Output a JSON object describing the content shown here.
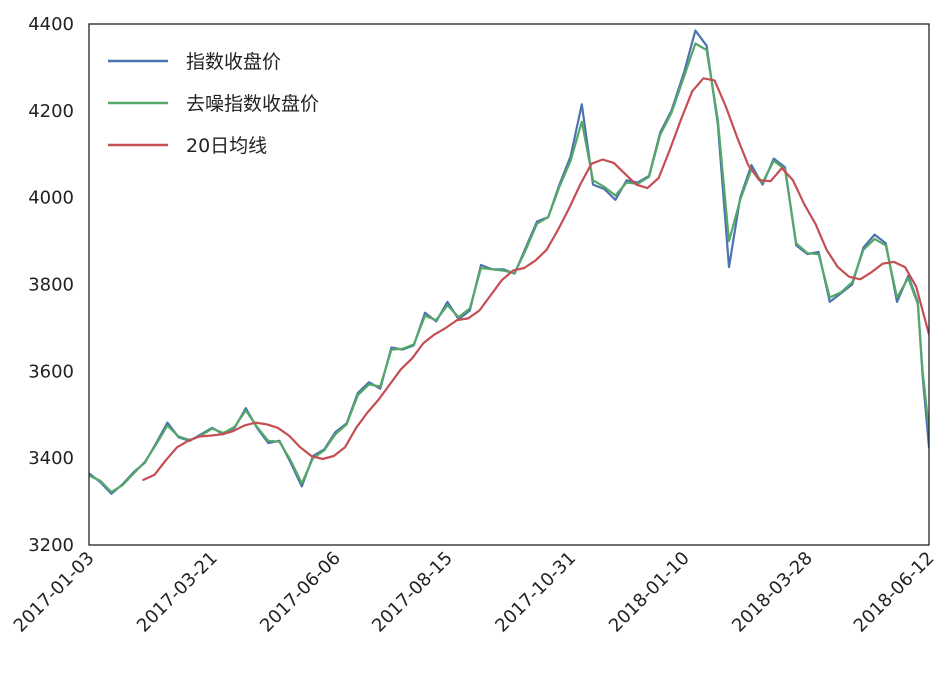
{
  "chart_data": {
    "type": "line",
    "title": "",
    "xlabel": "",
    "ylabel": "",
    "x_ticks": [
      "2017-01-03",
      "2017-03-21",
      "2017-06-06",
      "2017-08-15",
      "2017-10-31",
      "2018-01-10",
      "2018-03-28",
      "2018-06-12"
    ],
    "x_range": [
      "2017-01-03",
      "2018-06-12"
    ],
    "ylim": [
      3200,
      4400
    ],
    "y_ticks": [
      3200,
      3400,
      3600,
      3800,
      4000,
      4200,
      4400
    ],
    "grid": false,
    "legend_position": "upper-left",
    "series": [
      {
        "name": "指数收盘价",
        "color": "#4c72b0",
        "points": [
          [
            "2017-01-03",
            3365
          ],
          [
            "2017-01-10",
            3345
          ],
          [
            "2017-01-17",
            3318
          ],
          [
            "2017-01-24",
            3340
          ],
          [
            "2017-01-31",
            3368
          ],
          [
            "2017-02-07",
            3390
          ],
          [
            "2017-02-14",
            3435
          ],
          [
            "2017-02-21",
            3482
          ],
          [
            "2017-02-28",
            3448
          ],
          [
            "2017-03-07",
            3440
          ],
          [
            "2017-03-14",
            3455
          ],
          [
            "2017-03-21",
            3470
          ],
          [
            "2017-03-28",
            3455
          ],
          [
            "2017-04-04",
            3470
          ],
          [
            "2017-04-11",
            3515
          ],
          [
            "2017-04-18",
            3470
          ],
          [
            "2017-04-25",
            3435
          ],
          [
            "2017-05-02",
            3440
          ],
          [
            "2017-05-09",
            3390
          ],
          [
            "2017-05-16",
            3335
          ],
          [
            "2017-05-23",
            3405
          ],
          [
            "2017-05-30",
            3420
          ],
          [
            "2017-06-06",
            3460
          ],
          [
            "2017-06-13",
            3480
          ],
          [
            "2017-06-20",
            3550
          ],
          [
            "2017-06-27",
            3575
          ],
          [
            "2017-07-04",
            3560
          ],
          [
            "2017-07-11",
            3655
          ],
          [
            "2017-07-18",
            3650
          ],
          [
            "2017-07-25",
            3660
          ],
          [
            "2017-08-01",
            3735
          ],
          [
            "2017-08-08",
            3715
          ],
          [
            "2017-08-15",
            3760
          ],
          [
            "2017-08-22",
            3720
          ],
          [
            "2017-08-29",
            3740
          ],
          [
            "2017-09-05",
            3845
          ],
          [
            "2017-09-12",
            3835
          ],
          [
            "2017-09-19",
            3835
          ],
          [
            "2017-09-26",
            3825
          ],
          [
            "2017-10-03",
            3885
          ],
          [
            "2017-10-10",
            3945
          ],
          [
            "2017-10-17",
            3955
          ],
          [
            "2017-10-24",
            4030
          ],
          [
            "2017-10-31",
            4095
          ],
          [
            "2017-11-07",
            4215
          ],
          [
            "2017-11-14",
            4030
          ],
          [
            "2017-11-21",
            4020
          ],
          [
            "2017-11-28",
            3995
          ],
          [
            "2017-12-05",
            4040
          ],
          [
            "2017-12-12",
            4035
          ],
          [
            "2017-12-19",
            4050
          ],
          [
            "2017-12-26",
            4150
          ],
          [
            "2018-01-02",
            4200
          ],
          [
            "2018-01-10",
            4290
          ],
          [
            "2018-01-17",
            4385
          ],
          [
            "2018-01-24",
            4350
          ],
          [
            "2018-01-31",
            4170
          ],
          [
            "2018-02-07",
            3840
          ],
          [
            "2018-02-14",
            4000
          ],
          [
            "2018-02-21",
            4075
          ],
          [
            "2018-02-28",
            4030
          ],
          [
            "2018-03-07",
            4090
          ],
          [
            "2018-03-14",
            4070
          ],
          [
            "2018-03-21",
            3890
          ],
          [
            "2018-03-28",
            3870
          ],
          [
            "2018-04-04",
            3875
          ],
          [
            "2018-04-11",
            3760
          ],
          [
            "2018-04-18",
            3780
          ],
          [
            "2018-04-25",
            3800
          ],
          [
            "2018-05-02",
            3885
          ],
          [
            "2018-05-09",
            3915
          ],
          [
            "2018-05-16",
            3895
          ],
          [
            "2018-05-23",
            3760
          ],
          [
            "2018-05-30",
            3820
          ],
          [
            "2018-06-05",
            3760
          ],
          [
            "2018-06-08",
            3590
          ],
          [
            "2018-06-12",
            3425
          ]
        ]
      },
      {
        "name": "去噪指数收盘价",
        "color": "#55a868",
        "points": [
          [
            "2017-01-03",
            3360
          ],
          [
            "2017-01-10",
            3348
          ],
          [
            "2017-01-17",
            3322
          ],
          [
            "2017-01-24",
            3338
          ],
          [
            "2017-01-31",
            3365
          ],
          [
            "2017-02-07",
            3392
          ],
          [
            "2017-02-14",
            3432
          ],
          [
            "2017-02-21",
            3475
          ],
          [
            "2017-02-28",
            3450
          ],
          [
            "2017-03-07",
            3442
          ],
          [
            "2017-03-14",
            3452
          ],
          [
            "2017-03-21",
            3468
          ],
          [
            "2017-03-28",
            3458
          ],
          [
            "2017-04-04",
            3472
          ],
          [
            "2017-04-11",
            3510
          ],
          [
            "2017-04-18",
            3472
          ],
          [
            "2017-04-25",
            3440
          ],
          [
            "2017-05-02",
            3438
          ],
          [
            "2017-05-09",
            3395
          ],
          [
            "2017-05-16",
            3342
          ],
          [
            "2017-05-23",
            3400
          ],
          [
            "2017-05-30",
            3418
          ],
          [
            "2017-06-06",
            3455
          ],
          [
            "2017-06-13",
            3478
          ],
          [
            "2017-06-20",
            3545
          ],
          [
            "2017-06-27",
            3570
          ],
          [
            "2017-07-04",
            3565
          ],
          [
            "2017-07-11",
            3650
          ],
          [
            "2017-07-18",
            3652
          ],
          [
            "2017-07-25",
            3662
          ],
          [
            "2017-08-01",
            3728
          ],
          [
            "2017-08-08",
            3718
          ],
          [
            "2017-08-15",
            3752
          ],
          [
            "2017-08-22",
            3725
          ],
          [
            "2017-08-29",
            3745
          ],
          [
            "2017-09-05",
            3838
          ],
          [
            "2017-09-12",
            3835
          ],
          [
            "2017-09-19",
            3832
          ],
          [
            "2017-09-26",
            3826
          ],
          [
            "2017-10-03",
            3880
          ],
          [
            "2017-10-10",
            3940
          ],
          [
            "2017-10-17",
            3955
          ],
          [
            "2017-10-24",
            4025
          ],
          [
            "2017-10-31",
            4085
          ],
          [
            "2017-11-07",
            4175
          ],
          [
            "2017-11-14",
            4040
          ],
          [
            "2017-11-21",
            4025
          ],
          [
            "2017-11-28",
            4005
          ],
          [
            "2017-12-05",
            4035
          ],
          [
            "2017-12-12",
            4032
          ],
          [
            "2017-12-19",
            4048
          ],
          [
            "2017-12-26",
            4145
          ],
          [
            "2018-01-02",
            4195
          ],
          [
            "2018-01-10",
            4280
          ],
          [
            "2018-01-17",
            4355
          ],
          [
            "2018-01-24",
            4340
          ],
          [
            "2018-01-31",
            4180
          ],
          [
            "2018-02-07",
            3900
          ],
          [
            "2018-02-14",
            3995
          ],
          [
            "2018-02-21",
            4065
          ],
          [
            "2018-02-28",
            4035
          ],
          [
            "2018-03-07",
            4085
          ],
          [
            "2018-03-14",
            4065
          ],
          [
            "2018-03-21",
            3895
          ],
          [
            "2018-03-28",
            3872
          ],
          [
            "2018-04-04",
            3870
          ],
          [
            "2018-04-11",
            3770
          ],
          [
            "2018-04-18",
            3782
          ],
          [
            "2018-04-25",
            3805
          ],
          [
            "2018-05-02",
            3880
          ],
          [
            "2018-05-09",
            3905
          ],
          [
            "2018-05-16",
            3890
          ],
          [
            "2018-05-23",
            3770
          ],
          [
            "2018-05-30",
            3815
          ],
          [
            "2018-06-05",
            3755
          ],
          [
            "2018-06-08",
            3600
          ],
          [
            "2018-06-12",
            3465
          ]
        ]
      },
      {
        "name": "20日均线",
        "color": "#c44e52",
        "points": [
          [
            "2017-02-06",
            3350
          ],
          [
            "2017-02-13",
            3362
          ],
          [
            "2017-02-20",
            3395
          ],
          [
            "2017-02-27",
            3425
          ],
          [
            "2017-03-06",
            3440
          ],
          [
            "2017-03-13",
            3450
          ],
          [
            "2017-03-20",
            3452
          ],
          [
            "2017-03-27",
            3455
          ],
          [
            "2017-04-03",
            3462
          ],
          [
            "2017-04-10",
            3475
          ],
          [
            "2017-04-17",
            3482
          ],
          [
            "2017-04-24",
            3478
          ],
          [
            "2017-05-01",
            3470
          ],
          [
            "2017-05-08",
            3452
          ],
          [
            "2017-05-15",
            3425
          ],
          [
            "2017-05-22",
            3405
          ],
          [
            "2017-05-29",
            3398
          ],
          [
            "2017-06-05",
            3405
          ],
          [
            "2017-06-12",
            3425
          ],
          [
            "2017-06-19",
            3470
          ],
          [
            "2017-06-26",
            3505
          ],
          [
            "2017-07-03",
            3535
          ],
          [
            "2017-07-10",
            3570
          ],
          [
            "2017-07-17",
            3605
          ],
          [
            "2017-07-24",
            3630
          ],
          [
            "2017-07-31",
            3665
          ],
          [
            "2017-08-07",
            3685
          ],
          [
            "2017-08-14",
            3700
          ],
          [
            "2017-08-21",
            3718
          ],
          [
            "2017-08-28",
            3722
          ],
          [
            "2017-09-04",
            3740
          ],
          [
            "2017-09-11",
            3775
          ],
          [
            "2017-09-18",
            3810
          ],
          [
            "2017-09-25",
            3832
          ],
          [
            "2017-10-02",
            3838
          ],
          [
            "2017-10-09",
            3855
          ],
          [
            "2017-10-16",
            3880
          ],
          [
            "2017-10-23",
            3925
          ],
          [
            "2017-10-30",
            3975
          ],
          [
            "2017-11-06",
            4030
          ],
          [
            "2017-11-13",
            4078
          ],
          [
            "2017-11-20",
            4088
          ],
          [
            "2017-11-27",
            4080
          ],
          [
            "2017-12-04",
            4055
          ],
          [
            "2017-12-11",
            4030
          ],
          [
            "2017-12-18",
            4022
          ],
          [
            "2017-12-25",
            4045
          ],
          [
            "2018-01-01",
            4110
          ],
          [
            "2018-01-08",
            4180
          ],
          [
            "2018-01-15",
            4245
          ],
          [
            "2018-01-22",
            4275
          ],
          [
            "2018-01-29",
            4270
          ],
          [
            "2018-02-05",
            4210
          ],
          [
            "2018-02-12",
            4140
          ],
          [
            "2018-02-19",
            4075
          ],
          [
            "2018-02-26",
            4040
          ],
          [
            "2018-03-05",
            4038
          ],
          [
            "2018-03-12",
            4068
          ],
          [
            "2018-03-19",
            4040
          ],
          [
            "2018-03-26",
            3985
          ],
          [
            "2018-04-02",
            3940
          ],
          [
            "2018-04-09",
            3880
          ],
          [
            "2018-04-16",
            3840
          ],
          [
            "2018-04-23",
            3818
          ],
          [
            "2018-04-30",
            3812
          ],
          [
            "2018-05-07",
            3828
          ],
          [
            "2018-05-14",
            3848
          ],
          [
            "2018-05-21",
            3852
          ],
          [
            "2018-05-28",
            3840
          ],
          [
            "2018-06-04",
            3795
          ],
          [
            "2018-06-08",
            3740
          ],
          [
            "2018-06-12",
            3685
          ]
        ]
      }
    ]
  }
}
